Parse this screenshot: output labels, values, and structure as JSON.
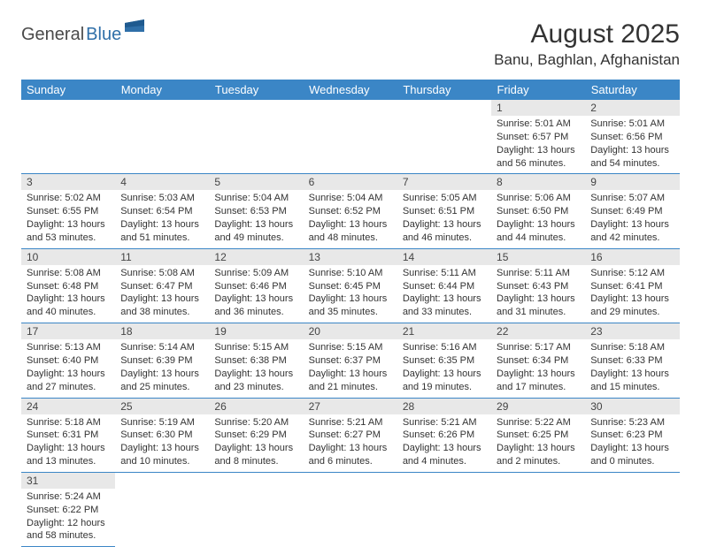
{
  "logo": {
    "word1": "General",
    "word2": "Blue"
  },
  "header": {
    "title": "August 2025",
    "location": "Banu, Baghlan, Afghanistan"
  },
  "colors": {
    "header_bg": "#3b86c6",
    "header_fg": "#ffffff",
    "daynum_bg": "#e8e8e8",
    "rule": "#3b86c6",
    "logo_dark": "#4a4a4a",
    "logo_blue": "#2f6fa8"
  },
  "weekdays": [
    "Sunday",
    "Monday",
    "Tuesday",
    "Wednesday",
    "Thursday",
    "Friday",
    "Saturday"
  ],
  "grid": [
    [
      null,
      null,
      null,
      null,
      null,
      {
        "n": "1",
        "sunrise": "Sunrise: 5:01 AM",
        "sunset": "Sunset: 6:57 PM",
        "day1": "Daylight: 13 hours",
        "day2": "and 56 minutes."
      },
      {
        "n": "2",
        "sunrise": "Sunrise: 5:01 AM",
        "sunset": "Sunset: 6:56 PM",
        "day1": "Daylight: 13 hours",
        "day2": "and 54 minutes."
      }
    ],
    [
      {
        "n": "3",
        "sunrise": "Sunrise: 5:02 AM",
        "sunset": "Sunset: 6:55 PM",
        "day1": "Daylight: 13 hours",
        "day2": "and 53 minutes."
      },
      {
        "n": "4",
        "sunrise": "Sunrise: 5:03 AM",
        "sunset": "Sunset: 6:54 PM",
        "day1": "Daylight: 13 hours",
        "day2": "and 51 minutes."
      },
      {
        "n": "5",
        "sunrise": "Sunrise: 5:04 AM",
        "sunset": "Sunset: 6:53 PM",
        "day1": "Daylight: 13 hours",
        "day2": "and 49 minutes."
      },
      {
        "n": "6",
        "sunrise": "Sunrise: 5:04 AM",
        "sunset": "Sunset: 6:52 PM",
        "day1": "Daylight: 13 hours",
        "day2": "and 48 minutes."
      },
      {
        "n": "7",
        "sunrise": "Sunrise: 5:05 AM",
        "sunset": "Sunset: 6:51 PM",
        "day1": "Daylight: 13 hours",
        "day2": "and 46 minutes."
      },
      {
        "n": "8",
        "sunrise": "Sunrise: 5:06 AM",
        "sunset": "Sunset: 6:50 PM",
        "day1": "Daylight: 13 hours",
        "day2": "and 44 minutes."
      },
      {
        "n": "9",
        "sunrise": "Sunrise: 5:07 AM",
        "sunset": "Sunset: 6:49 PM",
        "day1": "Daylight: 13 hours",
        "day2": "and 42 minutes."
      }
    ],
    [
      {
        "n": "10",
        "sunrise": "Sunrise: 5:08 AM",
        "sunset": "Sunset: 6:48 PM",
        "day1": "Daylight: 13 hours",
        "day2": "and 40 minutes."
      },
      {
        "n": "11",
        "sunrise": "Sunrise: 5:08 AM",
        "sunset": "Sunset: 6:47 PM",
        "day1": "Daylight: 13 hours",
        "day2": "and 38 minutes."
      },
      {
        "n": "12",
        "sunrise": "Sunrise: 5:09 AM",
        "sunset": "Sunset: 6:46 PM",
        "day1": "Daylight: 13 hours",
        "day2": "and 36 minutes."
      },
      {
        "n": "13",
        "sunrise": "Sunrise: 5:10 AM",
        "sunset": "Sunset: 6:45 PM",
        "day1": "Daylight: 13 hours",
        "day2": "and 35 minutes."
      },
      {
        "n": "14",
        "sunrise": "Sunrise: 5:11 AM",
        "sunset": "Sunset: 6:44 PM",
        "day1": "Daylight: 13 hours",
        "day2": "and 33 minutes."
      },
      {
        "n": "15",
        "sunrise": "Sunrise: 5:11 AM",
        "sunset": "Sunset: 6:43 PM",
        "day1": "Daylight: 13 hours",
        "day2": "and 31 minutes."
      },
      {
        "n": "16",
        "sunrise": "Sunrise: 5:12 AM",
        "sunset": "Sunset: 6:41 PM",
        "day1": "Daylight: 13 hours",
        "day2": "and 29 minutes."
      }
    ],
    [
      {
        "n": "17",
        "sunrise": "Sunrise: 5:13 AM",
        "sunset": "Sunset: 6:40 PM",
        "day1": "Daylight: 13 hours",
        "day2": "and 27 minutes."
      },
      {
        "n": "18",
        "sunrise": "Sunrise: 5:14 AM",
        "sunset": "Sunset: 6:39 PM",
        "day1": "Daylight: 13 hours",
        "day2": "and 25 minutes."
      },
      {
        "n": "19",
        "sunrise": "Sunrise: 5:15 AM",
        "sunset": "Sunset: 6:38 PM",
        "day1": "Daylight: 13 hours",
        "day2": "and 23 minutes."
      },
      {
        "n": "20",
        "sunrise": "Sunrise: 5:15 AM",
        "sunset": "Sunset: 6:37 PM",
        "day1": "Daylight: 13 hours",
        "day2": "and 21 minutes."
      },
      {
        "n": "21",
        "sunrise": "Sunrise: 5:16 AM",
        "sunset": "Sunset: 6:35 PM",
        "day1": "Daylight: 13 hours",
        "day2": "and 19 minutes."
      },
      {
        "n": "22",
        "sunrise": "Sunrise: 5:17 AM",
        "sunset": "Sunset: 6:34 PM",
        "day1": "Daylight: 13 hours",
        "day2": "and 17 minutes."
      },
      {
        "n": "23",
        "sunrise": "Sunrise: 5:18 AM",
        "sunset": "Sunset: 6:33 PM",
        "day1": "Daylight: 13 hours",
        "day2": "and 15 minutes."
      }
    ],
    [
      {
        "n": "24",
        "sunrise": "Sunrise: 5:18 AM",
        "sunset": "Sunset: 6:31 PM",
        "day1": "Daylight: 13 hours",
        "day2": "and 13 minutes."
      },
      {
        "n": "25",
        "sunrise": "Sunrise: 5:19 AM",
        "sunset": "Sunset: 6:30 PM",
        "day1": "Daylight: 13 hours",
        "day2": "and 10 minutes."
      },
      {
        "n": "26",
        "sunrise": "Sunrise: 5:20 AM",
        "sunset": "Sunset: 6:29 PM",
        "day1": "Daylight: 13 hours",
        "day2": "and 8 minutes."
      },
      {
        "n": "27",
        "sunrise": "Sunrise: 5:21 AM",
        "sunset": "Sunset: 6:27 PM",
        "day1": "Daylight: 13 hours",
        "day2": "and 6 minutes."
      },
      {
        "n": "28",
        "sunrise": "Sunrise: 5:21 AM",
        "sunset": "Sunset: 6:26 PM",
        "day1": "Daylight: 13 hours",
        "day2": "and 4 minutes."
      },
      {
        "n": "29",
        "sunrise": "Sunrise: 5:22 AM",
        "sunset": "Sunset: 6:25 PM",
        "day1": "Daylight: 13 hours",
        "day2": "and 2 minutes."
      },
      {
        "n": "30",
        "sunrise": "Sunrise: 5:23 AM",
        "sunset": "Sunset: 6:23 PM",
        "day1": "Daylight: 13 hours",
        "day2": "and 0 minutes."
      }
    ],
    [
      {
        "n": "31",
        "sunrise": "Sunrise: 5:24 AM",
        "sunset": "Sunset: 6:22 PM",
        "day1": "Daylight: 12 hours",
        "day2": "and 58 minutes."
      },
      null,
      null,
      null,
      null,
      null,
      null
    ]
  ]
}
